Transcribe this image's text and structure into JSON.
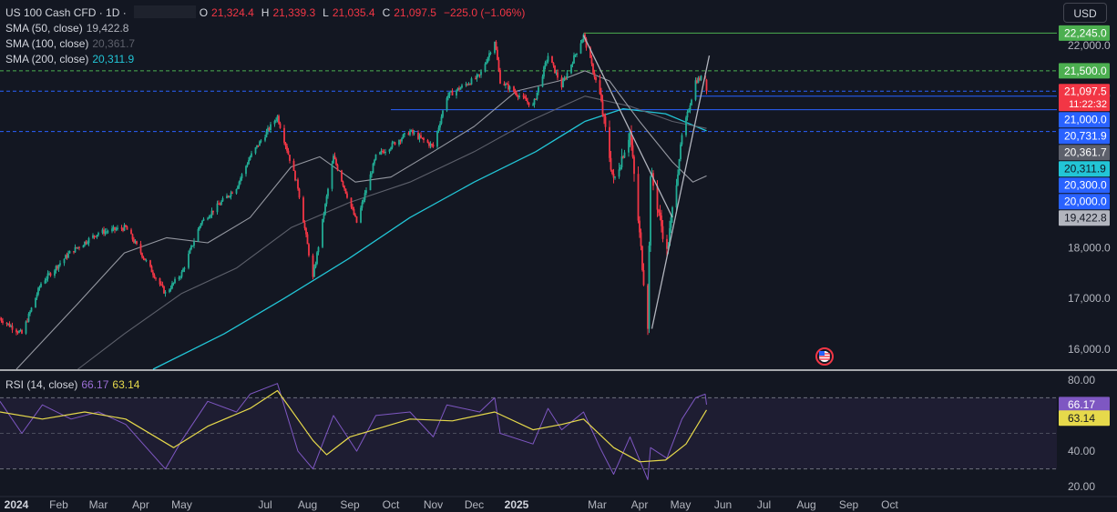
{
  "header": {
    "symbol": "US 100 Cash CFD · 1D ·",
    "o_label": "O",
    "o_value": "21,324.4",
    "h_label": "H",
    "h_value": "21,339.3",
    "l_label": "L",
    "l_value": "21,035.4",
    "c_label": "C",
    "c_value": "21,097.5",
    "change": "−225.0 (−1.06%)",
    "currency_button": "USD"
  },
  "indicators": {
    "sma50_label": "SMA (50, close)",
    "sma50_value": "19,422.8",
    "sma100_label": "SMA (100, close)",
    "sma100_value": "20,361.7",
    "sma200_label": "SMA (200, close)",
    "sma200_value": "20,311.9",
    "rsi_label": "RSI (14, close)",
    "rsi_value": "66.17",
    "rsi_ma_value": "63.14"
  },
  "colors": {
    "background": "#131722",
    "up": "#22ab94",
    "down": "#f23645",
    "sma50": "#9598a1",
    "sma100": "#5d606b",
    "sma200": "#22c5d6",
    "rsi": "#7e57c2",
    "rsi_ma": "#e6d94b",
    "horizontal_green": "#4caf50",
    "horizontal_blue": "#2962ff"
  },
  "chart_data": {
    "type": "candlestick",
    "symbol": "US 100 Cash CFD",
    "interval": "1D",
    "ylim": [
      15600,
      22900
    ],
    "yticks": [
      "22,000.0",
      "21,000.0",
      "18,000.0",
      "17,000.0",
      "16,000.0"
    ],
    "ytick_values": [
      22000,
      21000,
      18000,
      17000,
      16000
    ],
    "xticks": [
      "2024",
      "Feb",
      "Mar",
      "Apr",
      "May",
      "Jul",
      "Aug",
      "Sep",
      "Oct",
      "Nov",
      "Dec",
      "2025",
      "Mar",
      "Apr",
      "May",
      "Jun",
      "Jul",
      "Aug",
      "Sep",
      "Oct"
    ],
    "xtick_dates": [
      "2024-01-01",
      "2024-02-01",
      "2024-03-01",
      "2024-04-01",
      "2024-05-01",
      "2024-07-01",
      "2024-08-01",
      "2024-09-01",
      "2024-10-01",
      "2024-11-01",
      "2024-12-01",
      "2025-01-01",
      "2025-03-01",
      "2025-04-01",
      "2025-05-01",
      "2025-06-01",
      "2025-07-01",
      "2025-08-01",
      "2025-09-01",
      "2025-10-01"
    ],
    "price_path": [
      [
        "2023-12-20",
        16600
      ],
      [
        "2024-01-05",
        16300
      ],
      [
        "2024-01-19",
        17300
      ],
      [
        "2024-02-09",
        17900
      ],
      [
        "2024-03-01",
        18300
      ],
      [
        "2024-03-21",
        18400
      ],
      [
        "2024-04-19",
        17100
      ],
      [
        "2024-05-01",
        17500
      ],
      [
        "2024-05-15",
        18500
      ],
      [
        "2024-06-10",
        19200
      ],
      [
        "2024-06-20",
        19800
      ],
      [
        "2024-07-10",
        20600
      ],
      [
        "2024-07-25",
        19200
      ],
      [
        "2024-08-05",
        17400
      ],
      [
        "2024-08-20",
        19800
      ],
      [
        "2024-09-06",
        18500
      ],
      [
        "2024-09-20",
        19800
      ],
      [
        "2024-10-15",
        20300
      ],
      [
        "2024-11-01",
        20000
      ],
      [
        "2024-11-11",
        21000
      ],
      [
        "2024-12-05",
        21400
      ],
      [
        "2024-12-16",
        22100
      ],
      [
        "2024-12-20",
        21300
      ],
      [
        "2025-01-13",
        20800
      ],
      [
        "2025-01-24",
        21800
      ],
      [
        "2025-02-03",
        21200
      ],
      [
        "2025-02-19",
        22200
      ],
      [
        "2025-03-03",
        21000
      ],
      [
        "2025-03-13",
        19300
      ],
      [
        "2025-03-25",
        20300
      ],
      [
        "2025-04-07",
        16500
      ],
      [
        "2025-04-09",
        19500
      ],
      [
        "2025-04-21",
        17900
      ],
      [
        "2025-05-02",
        20200
      ],
      [
        "2025-05-12",
        21300
      ],
      [
        "2025-05-19",
        21400
      ],
      [
        "2025-05-20",
        21097.5
      ]
    ],
    "last": {
      "open": 21324.4,
      "high": 21339.3,
      "low": 21035.4,
      "close": 21097.5,
      "change": -225.0,
      "change_pct": -1.06
    },
    "price_labels": [
      {
        "value": 22245.0,
        "text": "22,245.0",
        "color": "#4caf50",
        "kind": "horizontal line"
      },
      {
        "value": 21500.0,
        "text": "21,500.0",
        "color": "#4caf50",
        "kind": "alert level"
      },
      {
        "value": 21097.5,
        "text": "21,097.5",
        "sub": "11:22:32",
        "color": "#f23645",
        "kind": "last price"
      },
      {
        "value": 21000.0,
        "text": "21,000.0",
        "color": "#2962ff",
        "kind": "horizontal line"
      },
      {
        "value": 20731.9,
        "text": "20,731.9",
        "color": "#2962ff",
        "kind": "horizontal line"
      },
      {
        "value": 20361.7,
        "text": "20,361.7",
        "color": "#5d606b",
        "kind": "SMA 100"
      },
      {
        "value": 20311.9,
        "text": "20,311.9",
        "color": "#22c5d6",
        "kind": "SMA 200"
      },
      {
        "value": 20300.0,
        "text": "20,300.0",
        "color": "#2962ff",
        "kind": "horizontal line"
      },
      {
        "value": 20000.0,
        "text": "20,000.0",
        "color": "#2962ff",
        "kind": "horizontal line"
      },
      {
        "value": 19422.8,
        "text": "19,422.8",
        "color": "#b2b5be",
        "kind": "SMA 50"
      }
    ],
    "sma50_path": [
      [
        "2024-01-01",
        15600
      ],
      [
        "2024-02-15",
        16900
      ],
      [
        "2024-03-20",
        17900
      ],
      [
        "2024-04-20",
        18200
      ],
      [
        "2024-05-20",
        18100
      ],
      [
        "2024-06-20",
        18600
      ],
      [
        "2024-07-20",
        19600
      ],
      [
        "2024-08-10",
        19800
      ],
      [
        "2024-09-05",
        19300
      ],
      [
        "2024-10-01",
        19400
      ],
      [
        "2024-11-01",
        19900
      ],
      [
        "2024-12-01",
        20400
      ],
      [
        "2025-01-01",
        21100
      ],
      [
        "2025-02-01",
        21300
      ],
      [
        "2025-02-20",
        21500
      ],
      [
        "2025-03-10",
        21300
      ],
      [
        "2025-04-01",
        20500
      ],
      [
        "2025-04-25",
        19700
      ],
      [
        "2025-05-10",
        19300
      ],
      [
        "2025-05-20",
        19422.8
      ]
    ],
    "sma100_path": [
      [
        "2024-02-15",
        15600
      ],
      [
        "2024-03-20",
        16300
      ],
      [
        "2024-05-01",
        17100
      ],
      [
        "2024-06-10",
        17600
      ],
      [
        "2024-07-20",
        18400
      ],
      [
        "2024-09-01",
        18900
      ],
      [
        "2024-10-15",
        19300
      ],
      [
        "2024-12-01",
        19900
      ],
      [
        "2025-01-10",
        20500
      ],
      [
        "2025-02-20",
        21000
      ],
      [
        "2025-03-25",
        20800
      ],
      [
        "2025-04-25",
        20500
      ],
      [
        "2025-05-20",
        20361.7
      ]
    ],
    "sma200_path": [
      [
        "2024-04-10",
        15600
      ],
      [
        "2024-06-01",
        16300
      ],
      [
        "2024-07-15",
        17000
      ],
      [
        "2024-09-01",
        17800
      ],
      [
        "2024-10-15",
        18600
      ],
      [
        "2024-12-01",
        19300
      ],
      [
        "2025-01-15",
        19900
      ],
      [
        "2025-02-20",
        20500
      ],
      [
        "2025-03-20",
        20750
      ],
      [
        "2025-04-20",
        20650
      ],
      [
        "2025-05-20",
        20311.9
      ]
    ],
    "horizontal_lines": [
      {
        "value": 22245.0,
        "from": "2025-02-19",
        "color": "#4caf50",
        "style": "solid"
      },
      {
        "value": 21500.0,
        "from": "2023-12-20",
        "color": "#4caf50",
        "style": "dashed"
      },
      {
        "value": 21097.5,
        "from": "2023-12-20",
        "color": "#2962ff",
        "style": "dashed"
      },
      {
        "value": 21000.0,
        "from": "2025-05-12",
        "color": "#2962ff",
        "style": "solid"
      },
      {
        "value": 20731.9,
        "from": "2024-10-01",
        "color": "#2962ff",
        "style": "solid"
      },
      {
        "value": 20300.0,
        "from": "2023-12-20",
        "color": "#2962ff",
        "style": "dashed"
      }
    ],
    "trendlines": [
      {
        "from": [
          "2025-02-19",
          22200
        ],
        "to": [
          "2025-04-25",
          18600
        ]
      },
      {
        "from": [
          "2025-04-10",
          16400
        ],
        "to": [
          "2025-05-22",
          21800
        ]
      }
    ]
  },
  "rsi_chart_data": {
    "type": "line",
    "ylim": [
      15,
      85
    ],
    "yticks": [
      "80.00",
      "40.00",
      "20.00"
    ],
    "ytick_values": [
      80,
      40,
      20
    ],
    "bands": [
      70,
      50,
      30
    ],
    "rsi_path": [
      [
        "2023-12-20",
        68
      ],
      [
        "2024-01-05",
        50
      ],
      [
        "2024-01-20",
        66
      ],
      [
        "2024-02-10",
        58
      ],
      [
        "2024-03-01",
        62
      ],
      [
        "2024-03-21",
        55
      ],
      [
        "2024-04-19",
        30
      ],
      [
        "2024-05-01",
        46
      ],
      [
        "2024-05-20",
        68
      ],
      [
        "2024-06-10",
        62
      ],
      [
        "2024-06-20",
        72
      ],
      [
        "2024-07-10",
        78
      ],
      [
        "2024-07-25",
        40
      ],
      [
        "2024-08-05",
        30
      ],
      [
        "2024-08-20",
        60
      ],
      [
        "2024-09-06",
        40
      ],
      [
        "2024-09-20",
        60
      ],
      [
        "2024-10-15",
        62
      ],
      [
        "2024-11-01",
        48
      ],
      [
        "2024-11-11",
        66
      ],
      [
        "2024-12-05",
        62
      ],
      [
        "2024-12-16",
        70
      ],
      [
        "2024-12-20",
        50
      ],
      [
        "2025-01-13",
        44
      ],
      [
        "2025-01-24",
        64
      ],
      [
        "2025-02-03",
        52
      ],
      [
        "2025-02-19",
        62
      ],
      [
        "2025-03-03",
        42
      ],
      [
        "2025-03-13",
        27
      ],
      [
        "2025-03-25",
        48
      ],
      [
        "2025-04-07",
        24
      ],
      [
        "2025-04-09",
        42
      ],
      [
        "2025-04-21",
        36
      ],
      [
        "2025-05-02",
        58
      ],
      [
        "2025-05-12",
        70
      ],
      [
        "2025-05-19",
        72
      ],
      [
        "2025-05-20",
        66.17
      ]
    ],
    "rsi_ma_path": [
      [
        "2023-12-20",
        62
      ],
      [
        "2024-01-20",
        58
      ],
      [
        "2024-02-20",
        62
      ],
      [
        "2024-03-21",
        58
      ],
      [
        "2024-04-25",
        42
      ],
      [
        "2024-05-20",
        54
      ],
      [
        "2024-06-20",
        64
      ],
      [
        "2024-07-10",
        74
      ],
      [
        "2024-08-05",
        46
      ],
      [
        "2024-08-15",
        38
      ],
      [
        "2024-09-01",
        48
      ],
      [
        "2024-10-15",
        58
      ],
      [
        "2024-11-15",
        57
      ],
      [
        "2024-12-16",
        62
      ],
      [
        "2025-01-13",
        52
      ],
      [
        "2025-02-03",
        55
      ],
      [
        "2025-02-19",
        58
      ],
      [
        "2025-03-13",
        42
      ],
      [
        "2025-04-01",
        34
      ],
      [
        "2025-04-20",
        35
      ],
      [
        "2025-05-05",
        44
      ],
      [
        "2025-05-20",
        63.14
      ]
    ]
  }
}
